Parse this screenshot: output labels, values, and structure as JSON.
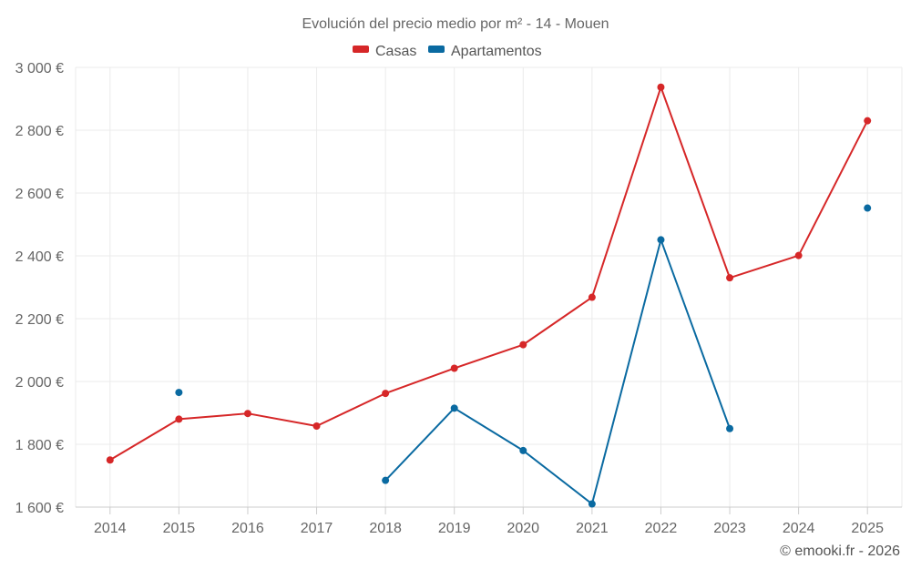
{
  "chart_data": {
    "type": "line",
    "title": "Evolución del precio medio por m² - 14 - Mouen",
    "categories": [
      "2014",
      "2015",
      "2016",
      "2017",
      "2018",
      "2019",
      "2020",
      "2021",
      "2022",
      "2023",
      "2024",
      "2025"
    ],
    "y_ticks": [
      1600,
      1800,
      2000,
      2200,
      2400,
      2600,
      2800,
      3000
    ],
    "y_tick_labels": [
      "1 600 €",
      "1 800 €",
      "2 000 €",
      "2 200 €",
      "2 400 €",
      "2 600 €",
      "2 800 €",
      "3 000 €"
    ],
    "ylim": [
      1600,
      3000
    ],
    "grid": true,
    "legend_position": "top-center",
    "series": [
      {
        "name": "Casas",
        "color": "#d62728",
        "values": [
          1750,
          1880,
          1898,
          1858,
          1962,
          2042,
          2117,
          2268,
          2937,
          2330,
          2401,
          2830
        ]
      },
      {
        "name": "Apartamentos",
        "color": "#0a6aa1",
        "values": [
          null,
          1965,
          null,
          null,
          1685,
          1915,
          1780,
          1610,
          2451,
          1850,
          null,
          2552
        ]
      }
    ],
    "credit": "© emooki.fr - 2026"
  }
}
